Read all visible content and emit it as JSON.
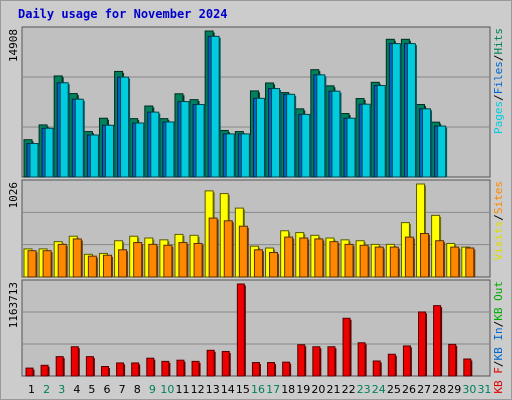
{
  "title": "Daily usage for November 2024",
  "chart_data": [
    {
      "type": "bar",
      "panel": "top",
      "max_label": "14908",
      "side_legend": [
        {
          "text": "Pages",
          "color": "#00ccdd"
        },
        {
          "text": "Files",
          "color": "#0066cc"
        },
        {
          "text": "Hits",
          "color": "#00805c"
        }
      ],
      "categories": [
        "1",
        "2",
        "3",
        "4",
        "5",
        "6",
        "7",
        "8",
        "9",
        "10",
        "11",
        "12",
        "13",
        "14",
        "15",
        "16",
        "17",
        "18",
        "19",
        "20",
        "21",
        "22",
        "23",
        "24",
        "25",
        "26",
        "27",
        "28",
        "29",
        "30",
        "31"
      ],
      "ylim": [
        0,
        14908
      ],
      "series": [
        {
          "name": "Hits",
          "color": "#00805c",
          "values": [
            3810,
            5320,
            10320,
            8520,
            4640,
            6000,
            10780,
            5960,
            7250,
            5960,
            8500,
            7900,
            14908,
            4750,
            4640,
            8790,
            9600,
            8620,
            6960,
            10960,
            9310,
            6480,
            8010,
            9670,
            14060,
            14060,
            7400,
            5600,
            0,
            0,
            0
          ]
        },
        {
          "name": "Files",
          "color": "#0066cc",
          "values": [
            3420,
            4970,
            9620,
            7940,
            4290,
            5280,
            10200,
            5510,
            6620,
            5620,
            7700,
            7400,
            14360,
            4400,
            4400,
            8030,
            9030,
            8440,
            6390,
            10430,
            8760,
            6000,
            7430,
            9340,
            13620,
            13620,
            6960,
            5200,
            0,
            0,
            0
          ]
        },
        {
          "name": "Pages",
          "color": "#00ccdd",
          "values": [
            3420,
            4970,
            9620,
            7940,
            4290,
            5280,
            10200,
            5510,
            6620,
            5620,
            7700,
            7400,
            14360,
            4400,
            4400,
            8030,
            9030,
            8440,
            6390,
            10430,
            8760,
            6000,
            7430,
            9340,
            13620,
            13620,
            6960,
            5200,
            0,
            0,
            0
          ]
        }
      ]
    },
    {
      "type": "bar",
      "panel": "middle",
      "max_label": "1026",
      "side_legend": [
        {
          "text": "Visits",
          "color": "#dddd00"
        },
        {
          "text": "Sites",
          "color": "#ff8800"
        }
      ],
      "categories": [
        "1",
        "2",
        "3",
        "4",
        "5",
        "6",
        "7",
        "8",
        "9",
        "10",
        "11",
        "12",
        "13",
        "14",
        "15",
        "16",
        "17",
        "18",
        "19",
        "20",
        "21",
        "22",
        "23",
        "24",
        "25",
        "26",
        "27",
        "28",
        "29",
        "30",
        "31"
      ],
      "ylim": [
        0,
        1026
      ],
      "series": [
        {
          "name": "Visits",
          "color": "#ffff00",
          "values": [
            310,
            310,
            390,
            450,
            250,
            260,
            400,
            450,
            430,
            410,
            470,
            460,
            950,
            920,
            760,
            340,
            320,
            510,
            490,
            460,
            430,
            410,
            400,
            360,
            360,
            600,
            1026,
            680,
            370,
            330,
            0
          ]
        },
        {
          "name": "Sites",
          "color": "#ff8800",
          "values": [
            290,
            290,
            360,
            420,
            230,
            240,
            300,
            380,
            360,
            350,
            380,
            370,
            650,
            620,
            560,
            300,
            270,
            440,
            430,
            420,
            390,
            360,
            350,
            330,
            330,
            440,
            480,
            400,
            330,
            320,
            0
          ]
        }
      ]
    },
    {
      "type": "bar",
      "panel": "bottom",
      "max_label": "1163713",
      "side_legend": [
        {
          "text": "KB F",
          "color": "#dd0000"
        },
        {
          "text": "KB In",
          "color": "#0066cc"
        },
        {
          "text": "KB Out",
          "color": "#00aa00"
        }
      ],
      "categories": [
        "1",
        "2",
        "3",
        "4",
        "5",
        "6",
        "7",
        "8",
        "9",
        "10",
        "11",
        "12",
        "13",
        "14",
        "15",
        "16",
        "17",
        "18",
        "19",
        "20",
        "21",
        "22",
        "23",
        "24",
        "25",
        "26",
        "27",
        "28",
        "29",
        "30",
        "31"
      ],
      "ylim": [
        0,
        1163713
      ],
      "series": [
        {
          "name": "KB F",
          "color": "#ee0000",
          "values": [
            100000,
            135000,
            245000,
            370000,
            245000,
            120000,
            165000,
            165000,
            225000,
            185000,
            200000,
            185000,
            325000,
            310000,
            1163713,
            170000,
            170000,
            175000,
            395000,
            370000,
            370000,
            730000,
            420000,
            190000,
            275000,
            380000,
            810000,
            890000,
            400000,
            215000,
            0
          ]
        }
      ]
    }
  ],
  "x_day_colors": {
    "weekday": "#000000",
    "weekend": "#00805c"
  },
  "weekend_days": [
    2,
    3,
    9,
    10,
    16,
    17,
    23,
    24,
    30,
    31
  ]
}
